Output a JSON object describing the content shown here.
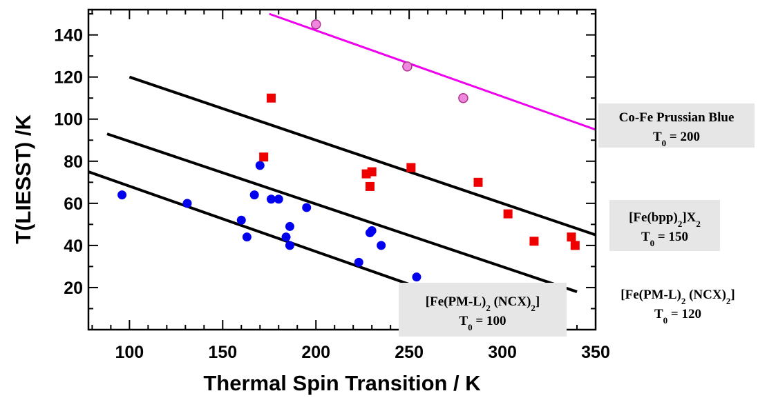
{
  "chart_data": {
    "type": "scatter",
    "xlabel": "Thermal Spin Transition / K",
    "ylabel": "T(LIESST) /K",
    "xlim": [
      78,
      350
    ],
    "ylim": [
      0,
      152
    ],
    "x_ticks": [
      100,
      150,
      200,
      250,
      300,
      350
    ],
    "y_ticks": [
      20,
      40,
      60,
      80,
      100,
      120,
      140
    ],
    "grid": false,
    "series": [
      {
        "marker": "circle",
        "color": "#0000ee",
        "points": [
          [
            96,
            64
          ],
          [
            131,
            60
          ],
          [
            160,
            52
          ],
          [
            163,
            44
          ],
          [
            167,
            64
          ],
          [
            170,
            78
          ],
          [
            176,
            62
          ],
          [
            180,
            62
          ],
          [
            184,
            44
          ],
          [
            186,
            49
          ],
          [
            186,
            40
          ],
          [
            195,
            58
          ],
          [
            223,
            32
          ],
          [
            229,
            46
          ],
          [
            230,
            47
          ],
          [
            235,
            40
          ],
          [
            254,
            25
          ]
        ]
      },
      {
        "marker": "square",
        "color": "#ee0000",
        "points": [
          [
            176,
            110
          ],
          [
            172,
            82
          ],
          [
            227,
            74
          ],
          [
            230,
            75
          ],
          [
            229,
            68
          ],
          [
            251,
            77
          ],
          [
            287,
            70
          ],
          [
            303,
            55
          ],
          [
            317,
            42
          ],
          [
            337,
            44
          ],
          [
            339,
            40
          ]
        ]
      },
      {
        "marker": "circle",
        "color": "#ee88dd",
        "points": [
          [
            200,
            145
          ],
          [
            249,
            125
          ],
          [
            279,
            110
          ]
        ]
      }
    ],
    "lines": [
      {
        "color": "#000000",
        "x": [
          78,
          255
        ],
        "y": [
          75,
          20
        ]
      },
      {
        "color": "#000000",
        "x": [
          88,
          340
        ],
        "y": [
          93,
          18
        ]
      },
      {
        "color": "#000000",
        "x": [
          100,
          350
        ],
        "y": [
          120,
          45
        ]
      },
      {
        "color": "#ee00ee",
        "x": [
          175,
          350
        ],
        "y": [
          150,
          95
        ]
      }
    ],
    "annotations": [
      {
        "line1": "Co-Fe Prussian Blue",
        "line2": "T",
        "sub": "0",
        "rest": " = 200",
        "boxed": true
      },
      {
        "line1": "[Fe(bpp)",
        "line1_sub": "2",
        "line1_rest": "]X",
        "line1_sub2": "2",
        "line2": "T",
        "sub": "0",
        "rest": " = 150",
        "boxed": true
      },
      {
        "line1": "[Fe(PM-L)",
        "line1_sub": "2",
        "line1_rest": " (NCX)",
        "line1_sub2": "2",
        "line1_end": "]",
        "line2": "T",
        "sub": "0",
        "rest": " = 120",
        "boxed": false
      },
      {
        "line1": "[Fe(PM-L)",
        "line1_sub": "2",
        "line1_rest": " (NCX)",
        "line1_sub2": "2",
        "line1_end": "]",
        "line2": "T",
        "sub": "0",
        "rest": " = 100",
        "boxed": true
      }
    ]
  }
}
